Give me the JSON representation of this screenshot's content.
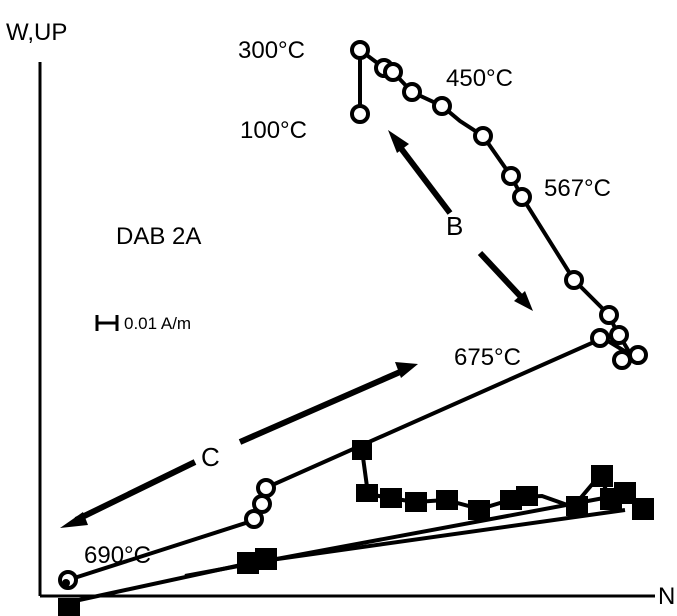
{
  "axes": {
    "vertical_label": "W,UP",
    "horizontal_label": "N"
  },
  "specimen_label": "DAB 2A",
  "scale_bar_label": "0.01 A/m",
  "temperature_labels": [
    "300°C",
    "100°C",
    "450°C",
    "567°C",
    "675°C",
    "690°C"
  ],
  "component_labels": [
    "B",
    "C"
  ],
  "colors": {
    "ink": "#000000",
    "background": "#ffffff"
  },
  "legend_symbols": {
    "open_circle": "open-circle-marker",
    "filled_square": "filled-square-marker"
  }
}
